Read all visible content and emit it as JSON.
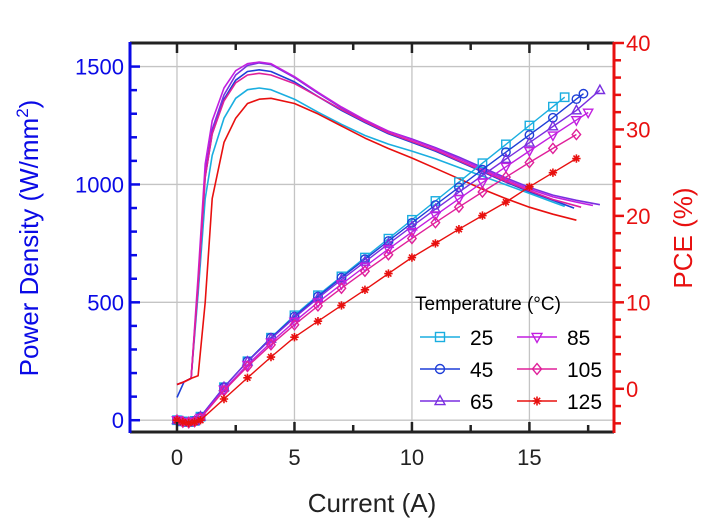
{
  "chart_data": {
    "type": "line",
    "title": "",
    "xlabel": "Current  (A)",
    "ylabel_left": "Power Density (W/mm",
    "ylabel_left_sup": "2",
    "ylabel_left_close": ")",
    "ylabel_right": "PCE (%)",
    "xlim": [
      -2,
      18.6
    ],
    "ylim_left": [
      -50,
      1600
    ],
    "ylim_right": [
      -5,
      40
    ],
    "xticks": [
      "0",
      "5",
      "10",
      "15"
    ],
    "yticks_left": [
      "0",
      "500",
      "1000",
      "1500"
    ],
    "yticks_right": [
      "0",
      "10",
      "20",
      "30",
      "40"
    ],
    "grid": true,
    "legend_title": "Temperature (°C)",
    "legend_placement": "bottom-right",
    "colors": {
      "left_axis": "#0a0ae6",
      "right_axis": "#e81010",
      "frame": "#222222"
    },
    "series": [
      {
        "name": "25",
        "color": "#1aaee0",
        "marker": "square",
        "power_density": {
          "x": [
            0,
            0.25,
            0.5,
            0.75,
            1,
            2,
            3,
            4,
            5,
            6,
            7,
            8,
            9,
            10,
            11,
            12,
            13,
            14,
            15,
            16,
            16.5
          ],
          "y": [
            0,
            -5,
            -8,
            -3,
            15,
            140,
            250,
            350,
            445,
            530,
            610,
            690,
            770,
            850,
            930,
            1010,
            1090,
            1170,
            1250,
            1330,
            1370
          ]
        },
        "pce": {
          "x": [
            0,
            0.3,
            0.6,
            0.9,
            1.2,
            1.5,
            2,
            2.5,
            3,
            3.5,
            4,
            5,
            6,
            7,
            8,
            9,
            10,
            11,
            12,
            13,
            14,
            15,
            16,
            16.5
          ],
          "y": [
            0.5,
            0.8,
            1.2,
            11,
            22,
            27,
            31.3,
            33.6,
            34.6,
            34.8,
            34.6,
            33.5,
            32,
            30.6,
            29.3,
            28.3,
            27.5,
            26.6,
            25.6,
            24.6,
            23.6,
            22.6,
            21.6,
            21.1
          ]
        }
      },
      {
        "name": "45",
        "color": "#1f3fd8",
        "marker": "circle",
        "power_density": {
          "x": [
            0,
            0.25,
            0.5,
            0.75,
            1,
            2,
            3,
            4,
            5,
            6,
            7,
            8,
            9,
            10,
            11,
            12,
            13,
            14,
            15,
            16,
            17,
            17.3
          ],
          "y": [
            0,
            -6,
            -8,
            -3,
            15,
            140,
            250,
            350,
            440,
            525,
            605,
            683,
            760,
            837,
            913,
            988,
            1063,
            1137,
            1210,
            1283,
            1362,
            1385
          ]
        },
        "pce": {
          "x": [
            0,
            0.3,
            0.6,
            0.9,
            1.2,
            1.5,
            2,
            2.5,
            3,
            3.5,
            4,
            5,
            6,
            7,
            8,
            9,
            10,
            11,
            12,
            13,
            14,
            15,
            16,
            16.9
          ],
          "y": [
            -1,
            0.8,
            1.2,
            12,
            24.5,
            29.5,
            33.5,
            35.7,
            36.7,
            36.9,
            36.7,
            35.5,
            33.8,
            32.2,
            30.8,
            29.5,
            28.5,
            27.5,
            26.3,
            25.1,
            23.9,
            22.8,
            21.8,
            20.9
          ]
        }
      },
      {
        "name": "65",
        "color": "#7a2fe0",
        "marker": "triangle-up",
        "power_density": {
          "x": [
            0,
            0.25,
            0.5,
            0.75,
            1,
            2,
            3,
            4,
            5,
            6,
            7,
            8,
            9,
            10,
            11,
            12,
            13,
            14,
            15,
            16,
            17,
            18
          ],
          "y": [
            0,
            -6,
            -9,
            -4,
            15,
            140,
            248,
            345,
            435,
            518,
            596,
            672,
            748,
            822,
            895,
            967,
            1038,
            1108,
            1177,
            1246,
            1314,
            1400
          ]
        },
        "pce": {
          "x": [
            0,
            0.3,
            0.6,
            0.9,
            1.2,
            1.5,
            2,
            2.5,
            3,
            3.5,
            4,
            5,
            6,
            7,
            8,
            9,
            10,
            11,
            12,
            13,
            14,
            15,
            16,
            17,
            18
          ],
          "y": [
            0.5,
            0.8,
            1.2,
            12,
            25,
            30,
            34,
            36.3,
            37.4,
            37.7,
            37.5,
            36,
            34.2,
            32.5,
            31,
            29.8,
            28.9,
            27.9,
            26.8,
            25.6,
            24.4,
            23.3,
            22.4,
            21.8,
            21.3
          ]
        }
      },
      {
        "name": "85",
        "color": "#c21fe0",
        "marker": "triangle-down",
        "power_density": {
          "x": [
            0,
            0.25,
            0.5,
            0.75,
            1,
            2,
            3,
            4,
            5,
            6,
            7,
            8,
            9,
            10,
            11,
            12,
            13,
            14,
            15,
            16,
            17,
            17.5
          ],
          "y": [
            0,
            -7,
            -10,
            -5,
            10,
            130,
            235,
            330,
            418,
            500,
            577,
            652,
            726,
            798,
            869,
            939,
            1008,
            1075,
            1142,
            1208,
            1273,
            1305
          ]
        },
        "pce": {
          "x": [
            0,
            0.3,
            0.6,
            0.9,
            1.2,
            1.5,
            2,
            2.5,
            3,
            3.5,
            4,
            5,
            6,
            7,
            8,
            9,
            10,
            11,
            12,
            13,
            14,
            15,
            16,
            17,
            17.7
          ],
          "y": [
            0.5,
            0.8,
            1.2,
            13,
            26,
            31,
            34.8,
            36.8,
            37.6,
            37.8,
            37.6,
            36.1,
            34.3,
            32.6,
            31.1,
            29.8,
            28.8,
            27.8,
            26.6,
            25.4,
            24.2,
            23.1,
            22.2,
            21.6,
            21.2
          ]
        }
      },
      {
        "name": "105",
        "color": "#e0209a",
        "marker": "diamond",
        "power_density": {
          "x": [
            0,
            0.25,
            0.5,
            0.75,
            1,
            2,
            3,
            4,
            5,
            6,
            7,
            8,
            9,
            10,
            11,
            12,
            13,
            14,
            15,
            16,
            17
          ],
          "y": [
            0,
            -8,
            -10,
            -6,
            8,
            125,
            228,
            320,
            405,
            485,
            560,
            632,
            702,
            771,
            838,
            904,
            968,
            1031,
            1093,
            1153,
            1212
          ]
        },
        "pce": {
          "x": [
            0,
            0.3,
            0.6,
            0.9,
            1.2,
            1.5,
            2,
            2.5,
            3,
            3.5,
            4,
            5,
            6,
            7,
            8,
            9,
            10,
            11,
            12,
            13,
            14,
            15,
            16,
            17.2
          ],
          "y": [
            0.5,
            0.8,
            1.2,
            12,
            24.5,
            29.5,
            33.3,
            35.4,
            36.3,
            36.5,
            36.3,
            35.3,
            33.8,
            32.3,
            30.9,
            29.6,
            28.6,
            27.6,
            26.4,
            25.2,
            24,
            22.9,
            21.9,
            21
          ]
        }
      },
      {
        "name": "125",
        "color": "#e8100f",
        "marker": "asterisk",
        "power_density": {
          "x": [
            0,
            0.25,
            0.5,
            0.75,
            1,
            2,
            3,
            4,
            5,
            6,
            7,
            8,
            9,
            10,
            11,
            12,
            13,
            14,
            15,
            16,
            17
          ],
          "y": [
            0,
            -8,
            -12,
            -8,
            0,
            90,
            180,
            268,
            352,
            420,
            487,
            553,
            622,
            690,
            750,
            810,
            868,
            925,
            990,
            1050,
            1110
          ]
        },
        "pce": {
          "x": [
            0,
            0.3,
            0.6,
            0.9,
            1.2,
            1.5,
            2,
            2.5,
            3,
            3.5,
            4,
            5,
            6,
            7,
            8,
            9,
            10,
            11,
            12,
            13,
            14,
            15,
            16,
            17
          ],
          "y": [
            0.5,
            0.8,
            1.2,
            1.5,
            10,
            22,
            28.5,
            31.3,
            33,
            33.5,
            33.6,
            33,
            31.8,
            30.4,
            29,
            27.8,
            26.7,
            25.5,
            24.3,
            23.1,
            22,
            21,
            20.2,
            19.5
          ]
        }
      }
    ]
  }
}
